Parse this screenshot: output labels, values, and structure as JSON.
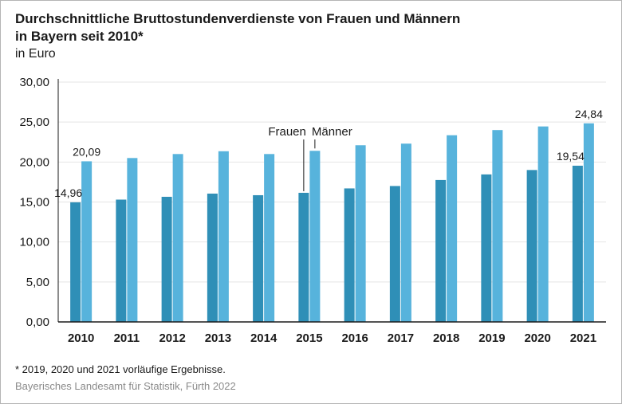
{
  "title_line1": "Durchschnittliche Bruttostundenverdienste von Frauen und Männern",
  "title_line2": "in Bayern seit 2010*",
  "unit": "in Euro",
  "footnote": "*  2019, 2020 und 2021 vorläufige Ergebnisse.",
  "source": "Bayerisches Landesamt für Statistik, Fürth 2022",
  "colors": {
    "frauen": "#2f8fb7",
    "maenner": "#57b3dc",
    "axis": "#1a1a1a",
    "grid": "#e4e4e4"
  },
  "chart_data": {
    "type": "bar",
    "title": "Durchschnittliche Bruttostundenverdienste von Frauen und Männern in Bayern seit 2010*",
    "ylabel": "in Euro",
    "ylim": [
      0,
      30
    ],
    "yticks": [
      "0,00",
      "5,00",
      "10,00",
      "15,00",
      "20,00",
      "25,00",
      "30,00"
    ],
    "ytick_values": [
      0,
      5,
      10,
      15,
      20,
      25,
      30
    ],
    "grid": true,
    "categories": [
      "2010",
      "2011",
      "2012",
      "2013",
      "2014",
      "2015",
      "2016",
      "2017",
      "2018",
      "2019",
      "2020",
      "2021"
    ],
    "series": [
      {
        "name": "Frauen",
        "values": [
          14.96,
          15.3,
          15.65,
          16.05,
          15.85,
          16.15,
          16.7,
          17.0,
          17.75,
          18.45,
          19.0,
          19.54
        ]
      },
      {
        "name": "Männer",
        "values": [
          20.09,
          20.5,
          21.0,
          21.35,
          21.0,
          21.4,
          22.1,
          22.3,
          23.35,
          24.0,
          24.45,
          24.84
        ]
      }
    ],
    "data_labels": [
      {
        "text": "14,96",
        "series": 0,
        "index": 0
      },
      {
        "text": "20,09",
        "series": 1,
        "index": 0
      },
      {
        "text": "19,54",
        "series": 0,
        "index": 11
      },
      {
        "text": "24,84",
        "series": 1,
        "index": 11
      }
    ],
    "legend_labels": {
      "frauen": "Frauen",
      "maenner": "Männer",
      "category_index": 5
    }
  }
}
